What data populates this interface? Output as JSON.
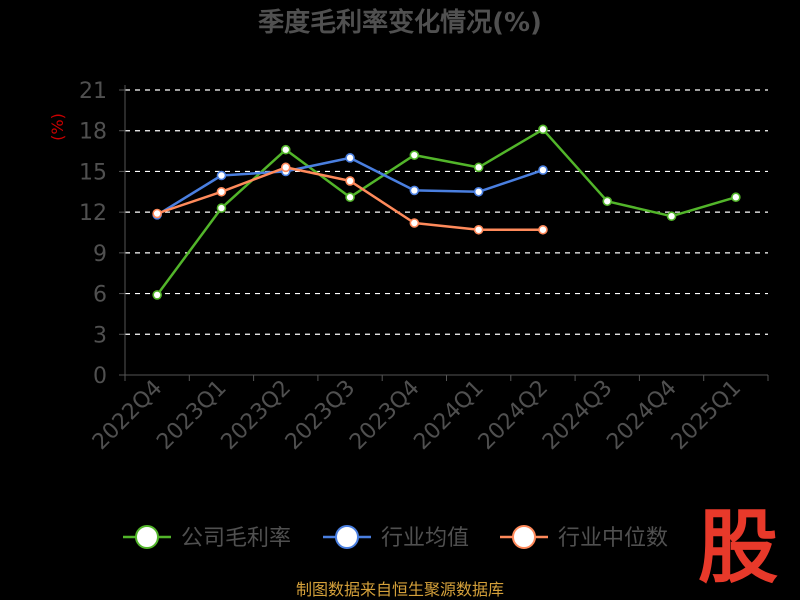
{
  "chart_data": {
    "type": "line",
    "title": "季度毛利率变化情况(%)",
    "ylabel": "(%)",
    "categories": [
      "2022Q4",
      "2023Q1",
      "2023Q2",
      "2023Q3",
      "2023Q4",
      "2024Q1",
      "2024Q2",
      "2024Q3",
      "2024Q4",
      "2025Q1"
    ],
    "yticks": [
      "0",
      "3",
      "6",
      "9",
      "12",
      "15",
      "18",
      "21"
    ],
    "ylim": [
      0,
      21
    ],
    "grid": true,
    "legend_position": "bottom",
    "series": [
      {
        "name": "公司毛利率",
        "color": "#52b52a",
        "values": [
          5.9,
          12.3,
          16.6,
          13.1,
          16.2,
          15.3,
          18.1,
          12.8,
          11.7,
          13.1
        ]
      },
      {
        "name": "行业均值",
        "color": "#4a7fe0",
        "values": [
          11.8,
          14.7,
          15.0,
          16.0,
          13.6,
          13.5,
          15.1,
          null,
          null,
          null
        ]
      },
      {
        "name": "行业中位数",
        "color": "#ff8a5b",
        "values": [
          11.9,
          13.5,
          15.3,
          14.3,
          11.2,
          10.7,
          10.7,
          null,
          null,
          null
        ]
      }
    ]
  },
  "source_text": "制图数据来自恒生聚源数据库",
  "logo_text": "股"
}
